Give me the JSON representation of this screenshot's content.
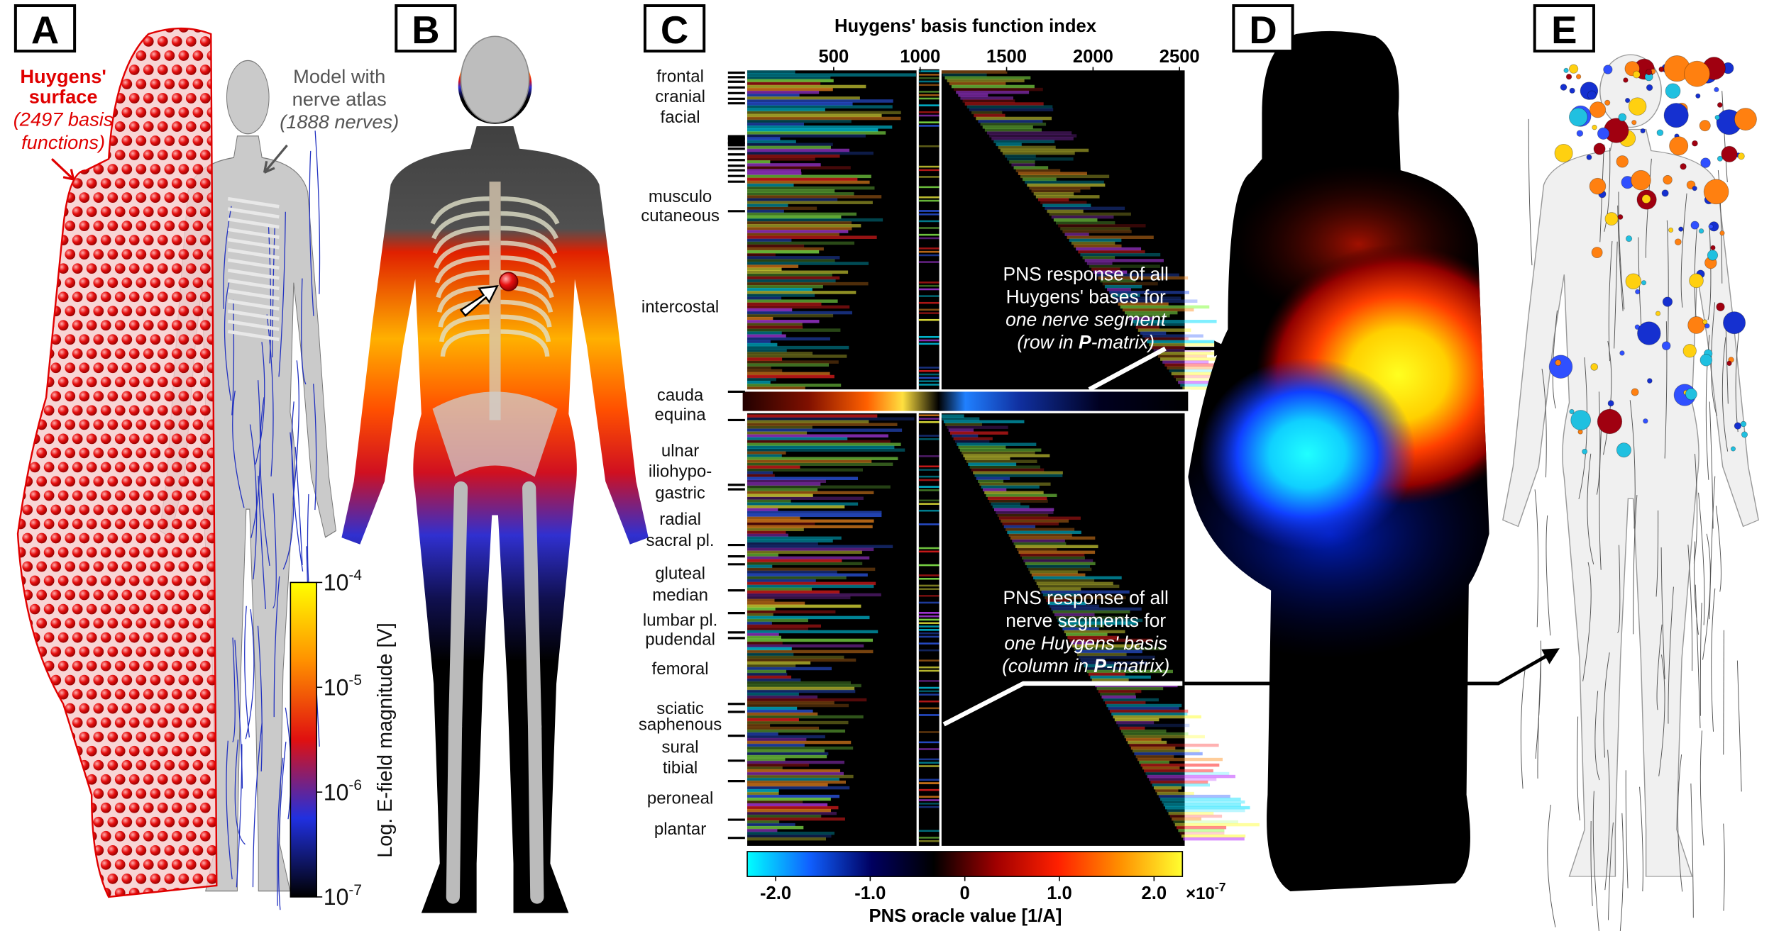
{
  "panel_labels": [
    "A",
    "B",
    "C",
    "D",
    "E"
  ],
  "panel_a": {
    "surface_label": [
      "Huygens'",
      "surface"
    ],
    "surface_note": [
      "(2497 basis",
      "functions)"
    ],
    "model_label": [
      "Model with",
      "nerve atlas"
    ],
    "model_note": "(1888 nerves)",
    "colorbar": {
      "label": "Log. E-field magnitude [V]",
      "scale": "log",
      "lim": [
        1e-07,
        0.0001
      ],
      "ticks": [
        {
          "value": 0.0001,
          "label": "10",
          "exponent": "-4"
        },
        {
          "value": 1e-05,
          "label": "10",
          "exponent": "-5"
        },
        {
          "value": 1e-06,
          "label": "10",
          "exponent": "-6"
        },
        {
          "value": 1e-07,
          "label": "10",
          "exponent": "-7"
        }
      ],
      "colors": [
        "#000000",
        "#2030e0",
        "#e01010",
        "#ff9000",
        "#ffff00"
      ]
    }
  },
  "panel_c": {
    "xlabel": "Huygens' basis function index",
    "xlim": [
      0,
      2530
    ],
    "xticks": [
      500,
      1000,
      1500,
      2000,
      2500
    ],
    "nerves": [
      "frontal",
      "cranial",
      "facial",
      "musculo",
      "cutaneous",
      "intercostal",
      "cauda",
      "equina",
      "ulnar",
      "iliohypo-",
      "gastric",
      "radial",
      "sacral pl.",
      "gluteal",
      "median",
      "lumbar pl.",
      "pudendal",
      "femoral",
      "sciatic",
      "saphenous",
      "sural",
      "tibial",
      "peroneal",
      "plantar"
    ],
    "row_note": [
      [
        {
          "text": "PNS response of all"
        }
      ],
      [
        {
          "text": "Huygens' bases for"
        }
      ],
      [
        {
          "text": "one nerve segment",
          "style": "italic"
        }
      ],
      [
        {
          "text": "(row in ",
          "style": "italic"
        },
        {
          "text": "P",
          "style": "bold-italic"
        },
        {
          "text": "-matrix)",
          "style": "italic"
        }
      ]
    ],
    "column_note": [
      [
        {
          "text": "PNS response of all"
        }
      ],
      [
        {
          "text": "nerve segments for"
        }
      ],
      [
        {
          "text": "one Huygens' basis",
          "style": "italic"
        }
      ],
      [
        {
          "text": "(column in ",
          "style": "italic"
        },
        {
          "text": "P",
          "style": "bold-italic"
        },
        {
          "text": "-matrix)",
          "style": "italic"
        }
      ]
    ],
    "colorbar": {
      "label": "PNS oracle value [1/A]",
      "lim": [
        -2.3,
        2.3
      ],
      "ticks": [
        {
          "value": -2,
          "label": "-2.0"
        },
        {
          "value": -1,
          "label": "-1.0"
        },
        0,
        {
          "value": 1,
          "label": "1.0"
        },
        {
          "value": 2,
          "label": "2.0"
        }
      ],
      "multiplier": {
        "label": "×10",
        "exponent": "-7"
      },
      "colors": [
        "#00ffff",
        "#1060ff",
        "#000060",
        "#000000",
        "#a00000",
        "#ff2000",
        "#ff9000",
        "#ffff30"
      ]
    }
  }
}
